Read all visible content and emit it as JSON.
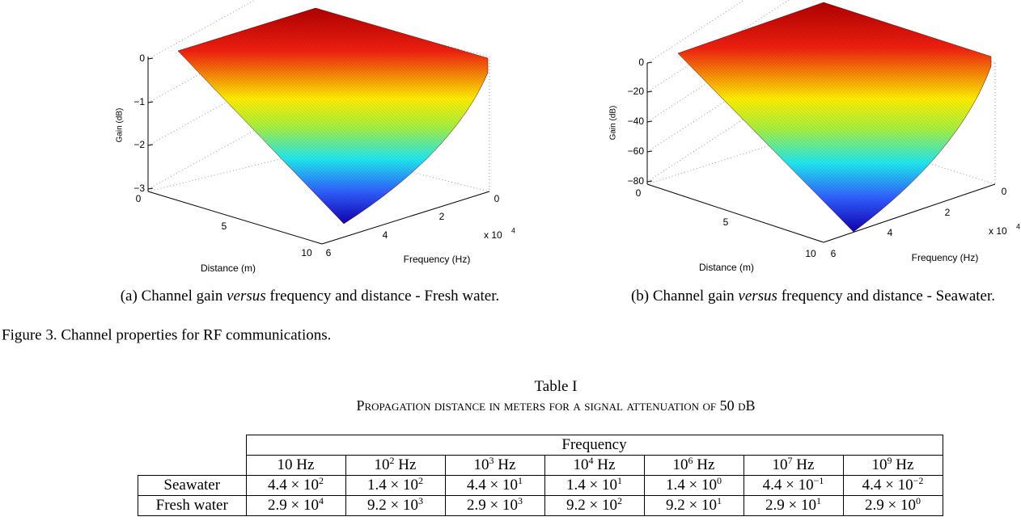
{
  "figures": [
    {
      "caption": {
        "prefix": "(a) Channel gain ",
        "emphasis": "versus",
        "suffix": " frequency and distance - Fresh water."
      },
      "z_label": "Gain (dB)",
      "z_ticks": [
        "0",
        "−1",
        "−2",
        "−3"
      ],
      "distance_label": "Distance (m)",
      "distance_ticks": [
        "0",
        "5",
        "10"
      ],
      "frequency_label": "Frequency (Hz)",
      "frequency_ticks": [
        "0",
        "2",
        "4",
        "6"
      ],
      "frequency_multiplier": {
        "base": "x 10",
        "exp": "4"
      }
    },
    {
      "caption": {
        "prefix": "(b) Channel gain ",
        "emphasis": "versus",
        "suffix": " frequency and distance - Seawater."
      },
      "z_label": "Gain (dB)",
      "z_ticks": [
        "0",
        "−20",
        "−40",
        "−60",
        "−80"
      ],
      "distance_label": "Distance (m)",
      "distance_ticks": [
        "0",
        "5",
        "10"
      ],
      "frequency_label": "Frequency (Hz)",
      "frequency_ticks": [
        "0",
        "2",
        "4",
        "6"
      ],
      "frequency_multiplier": {
        "base": "x 10",
        "exp": "4"
      }
    }
  ],
  "figure_caption": "Figure 3.  Channel properties for RF communications.",
  "table": {
    "title": "Table I",
    "subtitle": "Propagation distance in meters for a signal attenuation of 50 dB",
    "group_header": "Frequency",
    "columns": [
      "10 Hz",
      {
        "base": "10",
        "exp": "2",
        "unit": " Hz"
      },
      {
        "base": "10",
        "exp": "3",
        "unit": " Hz"
      },
      {
        "base": "10",
        "exp": "4",
        "unit": " Hz"
      },
      {
        "base": "10",
        "exp": "6",
        "unit": " Hz"
      },
      {
        "base": "10",
        "exp": "7",
        "unit": " Hz"
      },
      {
        "base": "10",
        "exp": "9",
        "unit": " Hz"
      }
    ],
    "rows": [
      {
        "label": "Seawater",
        "cells": [
          {
            "base": "4.4 × 10",
            "exp": "2"
          },
          {
            "base": "1.4 × 10",
            "exp": "2"
          },
          {
            "base": "4.4 × 10",
            "exp": "1"
          },
          {
            "base": "1.4 × 10",
            "exp": "1"
          },
          {
            "base": "1.4 × 10",
            "exp": "0"
          },
          {
            "base": "4.4 × 10",
            "exp": "−1"
          },
          {
            "base": "4.4 × 10",
            "exp": "−2"
          }
        ]
      },
      {
        "label": "Fresh water",
        "cells": [
          {
            "base": "2.9 × 10",
            "exp": "4"
          },
          {
            "base": "9.2 × 10",
            "exp": "3"
          },
          {
            "base": "2.9 × 10",
            "exp": "3"
          },
          {
            "base": "9.2 × 10",
            "exp": "2"
          },
          {
            "base": "9.2 × 10",
            "exp": "1"
          },
          {
            "base": "2.9 × 10",
            "exp": "1"
          },
          {
            "base": "2.9 × 10",
            "exp": "0"
          }
        ]
      }
    ]
  }
}
